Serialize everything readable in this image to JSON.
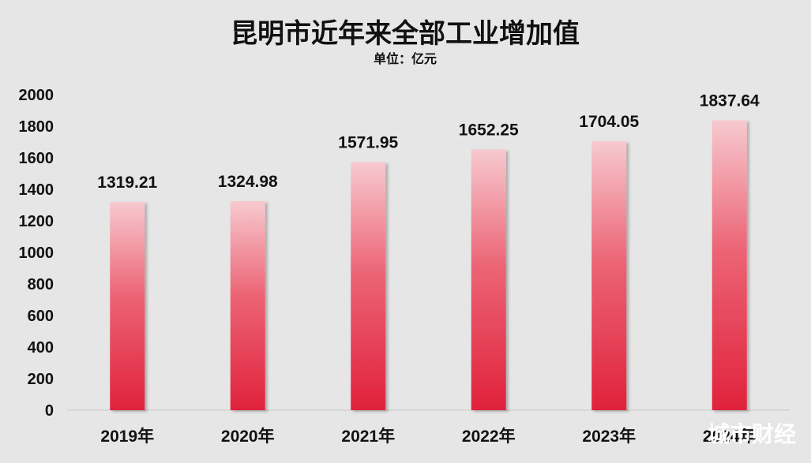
{
  "chart_data": {
    "type": "bar",
    "title": "昆明市近年来全部工业增加值",
    "subtitle": "单位：亿元",
    "categories": [
      "2019年",
      "2020年",
      "2021年",
      "2022年",
      "2023年",
      "2024年"
    ],
    "values": [
      1319.21,
      1324.98,
      1571.95,
      1652.25,
      1704.05,
      1837.64
    ],
    "data_labels": [
      "1319.21",
      "1324.98",
      "1571.95",
      "1652.25",
      "1704.05",
      "1837.64"
    ],
    "ylim": [
      0,
      2000
    ],
    "yticks": [
      0,
      200,
      400,
      600,
      800,
      1000,
      1200,
      1400,
      1600,
      1800,
      2000
    ],
    "grid": false,
    "legend": "none",
    "colors": {
      "bar_top": "#f7c9cf",
      "bar_bottom": "#e0223c",
      "background": "#e6e6e6"
    }
  },
  "watermark": "城市财经"
}
